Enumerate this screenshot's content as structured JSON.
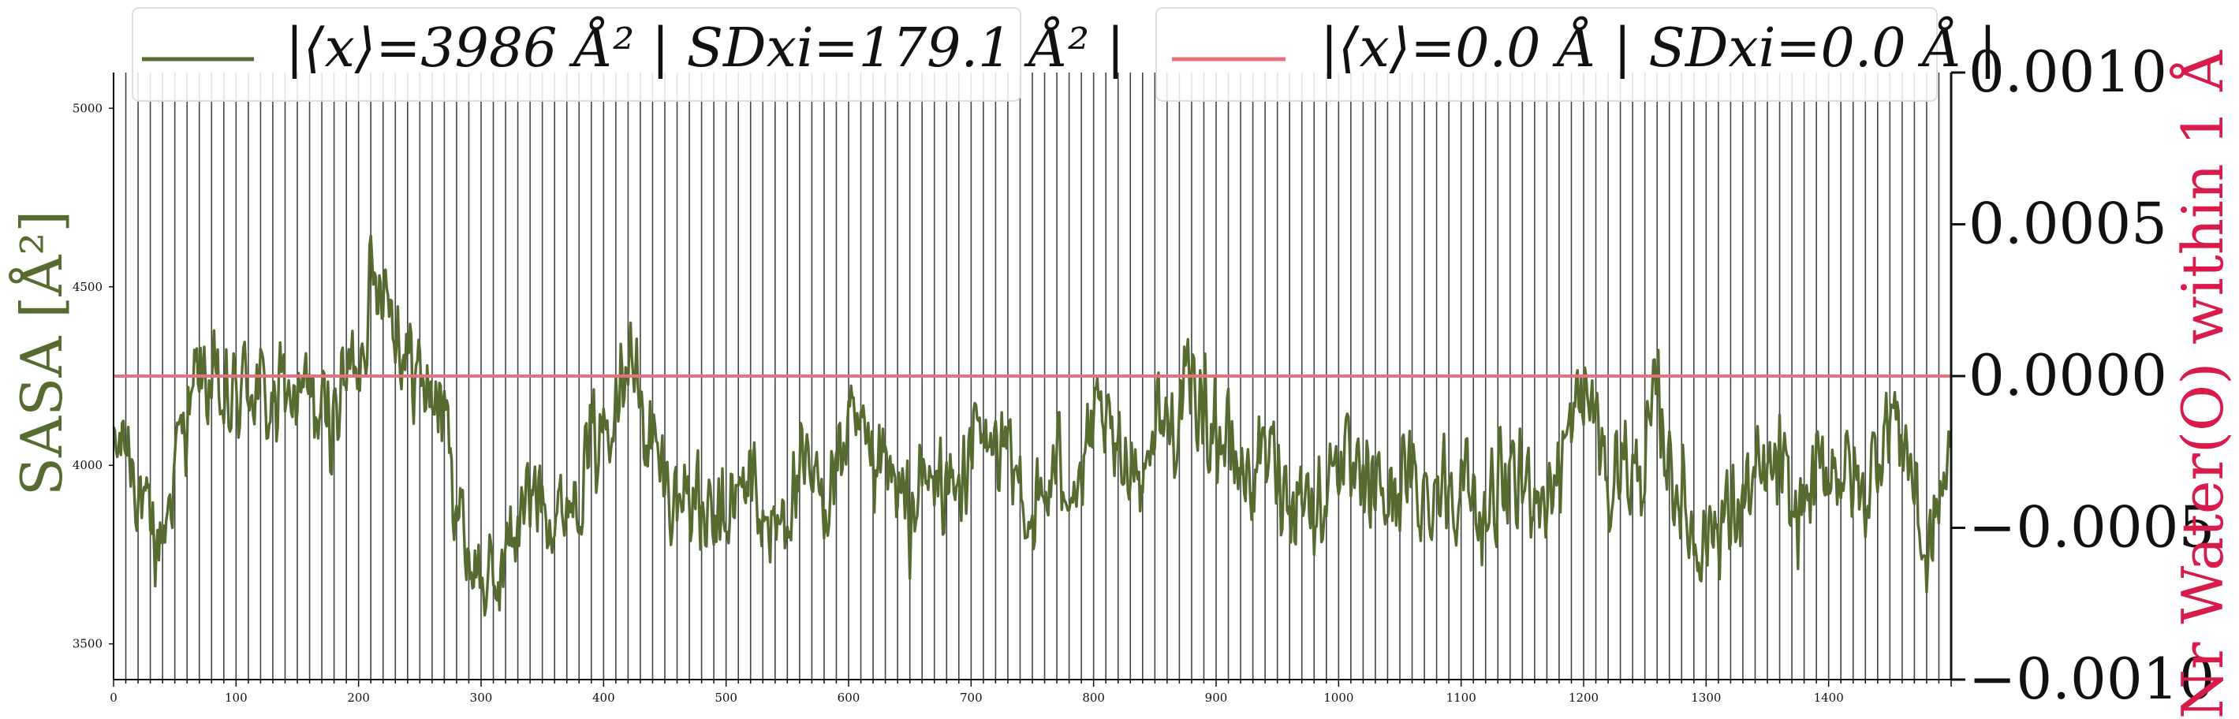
{
  "colors": {
    "sasa": "#556b2f",
    "water": "#e8707f",
    "water_label": "#d81b4a",
    "axis": "#111111",
    "vline": "#444444"
  },
  "legend": {
    "sasa": "|⟨x⟩=3986 Å² | SDxi=179.1 Å² |",
    "water": "|⟨x⟩=0.0 Å | SDxi=0.0 Å |"
  },
  "chart_data": {
    "type": "line",
    "xlabel": "",
    "ylabel_left": "SASA [Å²]",
    "ylabel_right": "Nr Water(O) within 1 Å",
    "xlim": [
      0,
      1500
    ],
    "ylim_left": [
      3400,
      5100
    ],
    "ylim_right": [
      -0.001,
      0.001
    ],
    "x_ticks": [
      "0",
      "100",
      "200",
      "300",
      "400",
      "500",
      "600",
      "700",
      "800",
      "900",
      "1000",
      "1100",
      "1200",
      "1300",
      "1400"
    ],
    "y_left_ticks": [
      "3500",
      "4000",
      "4500",
      "5000"
    ],
    "y_right_ticks": [
      "−0.0010",
      "−0.0005",
      "0.0000",
      "0.0005",
      "0.0010"
    ],
    "vertical_lines_every": 10,
    "series": [
      {
        "axis": "left",
        "mean": 3986,
        "sd": 179.1,
        "n_points": 1500,
        "anchors_x": [
          0,
          10,
          20,
          30,
          40,
          50,
          60,
          70,
          80,
          90,
          100,
          110,
          120,
          130,
          140,
          150,
          160,
          170,
          180,
          190,
          200,
          210,
          220,
          230,
          240,
          250,
          260,
          270,
          280,
          290,
          300,
          310,
          320,
          330,
          340,
          350,
          360,
          370,
          380,
          390,
          400,
          410,
          420,
          430,
          440,
          450,
          460,
          470,
          480,
          490,
          500,
          510,
          520,
          530,
          540,
          550,
          560,
          570,
          580,
          590,
          600,
          610,
          620,
          630,
          640,
          650,
          660,
          670,
          680,
          690,
          700,
          710,
          720,
          730,
          740,
          750,
          760,
          770,
          780,
          790,
          800,
          810,
          820,
          830,
          840,
          850,
          860,
          870,
          880,
          890,
          900,
          910,
          920,
          930,
          940,
          950,
          960,
          970,
          980,
          990,
          1000,
          1010,
          1020,
          1030,
          1040,
          1050,
          1060,
          1070,
          1080,
          1090,
          1100,
          1110,
          1120,
          1130,
          1140,
          1150,
          1160,
          1170,
          1180,
          1190,
          1200,
          1210,
          1220,
          1230,
          1240,
          1250,
          1260,
          1270,
          1280,
          1290,
          1300,
          1310,
          1320,
          1330,
          1340,
          1350,
          1360,
          1370,
          1380,
          1390,
          1400,
          1410,
          1420,
          1430,
          1440,
          1450,
          1460,
          1470,
          1480,
          1490,
          1499
        ],
        "anchors_y": [
          4020,
          4080,
          3950,
          3780,
          3800,
          4000,
          4150,
          4250,
          4220,
          4150,
          4180,
          4250,
          4200,
          4150,
          4220,
          4180,
          4200,
          4120,
          4150,
          4250,
          4300,
          4500,
          4560,
          4400,
          4300,
          4250,
          4200,
          4150,
          3900,
          3750,
          3680,
          3650,
          3750,
          3850,
          3900,
          3950,
          3850,
          3900,
          3950,
          4050,
          4100,
          4250,
          4350,
          4150,
          4050,
          3950,
          3900,
          3950,
          3850,
          3800,
          3850,
          3900,
          4000,
          3850,
          3800,
          3900,
          3950,
          3950,
          3900,
          4000,
          4100,
          4050,
          3950,
          4000,
          3900,
          3850,
          3950,
          3950,
          3950,
          3900,
          4100,
          4050,
          4050,
          4000,
          3950,
          3850,
          3900,
          4000,
          3980,
          3950,
          4100,
          4100,
          4000,
          4050,
          3950,
          4150,
          4100,
          4150,
          4220,
          4150,
          4100,
          4050,
          4000,
          3950,
          4050,
          4000,
          3900,
          3950,
          3850,
          3950,
          4050,
          3950,
          3900,
          3950,
          3900,
          3950,
          3950,
          3900,
          3950,
          3950,
          3950,
          3900,
          3850,
          3950,
          3900,
          3950,
          3950,
          3900,
          4000,
          4100,
          4200,
          4150,
          3900,
          4050,
          3950,
          4000,
          4200,
          4000,
          3900,
          3800,
          3800,
          3850,
          3850,
          3900,
          3950,
          3950,
          4000,
          3850,
          3900,
          3950,
          4000,
          4000,
          3950,
          3900,
          4050,
          4150,
          4100,
          3950,
          3700,
          3900,
          4000
        ],
        "amplitude": 180
      },
      {
        "axis": "right",
        "values": [
          0.0,
          0.0
        ]
      }
    ]
  }
}
